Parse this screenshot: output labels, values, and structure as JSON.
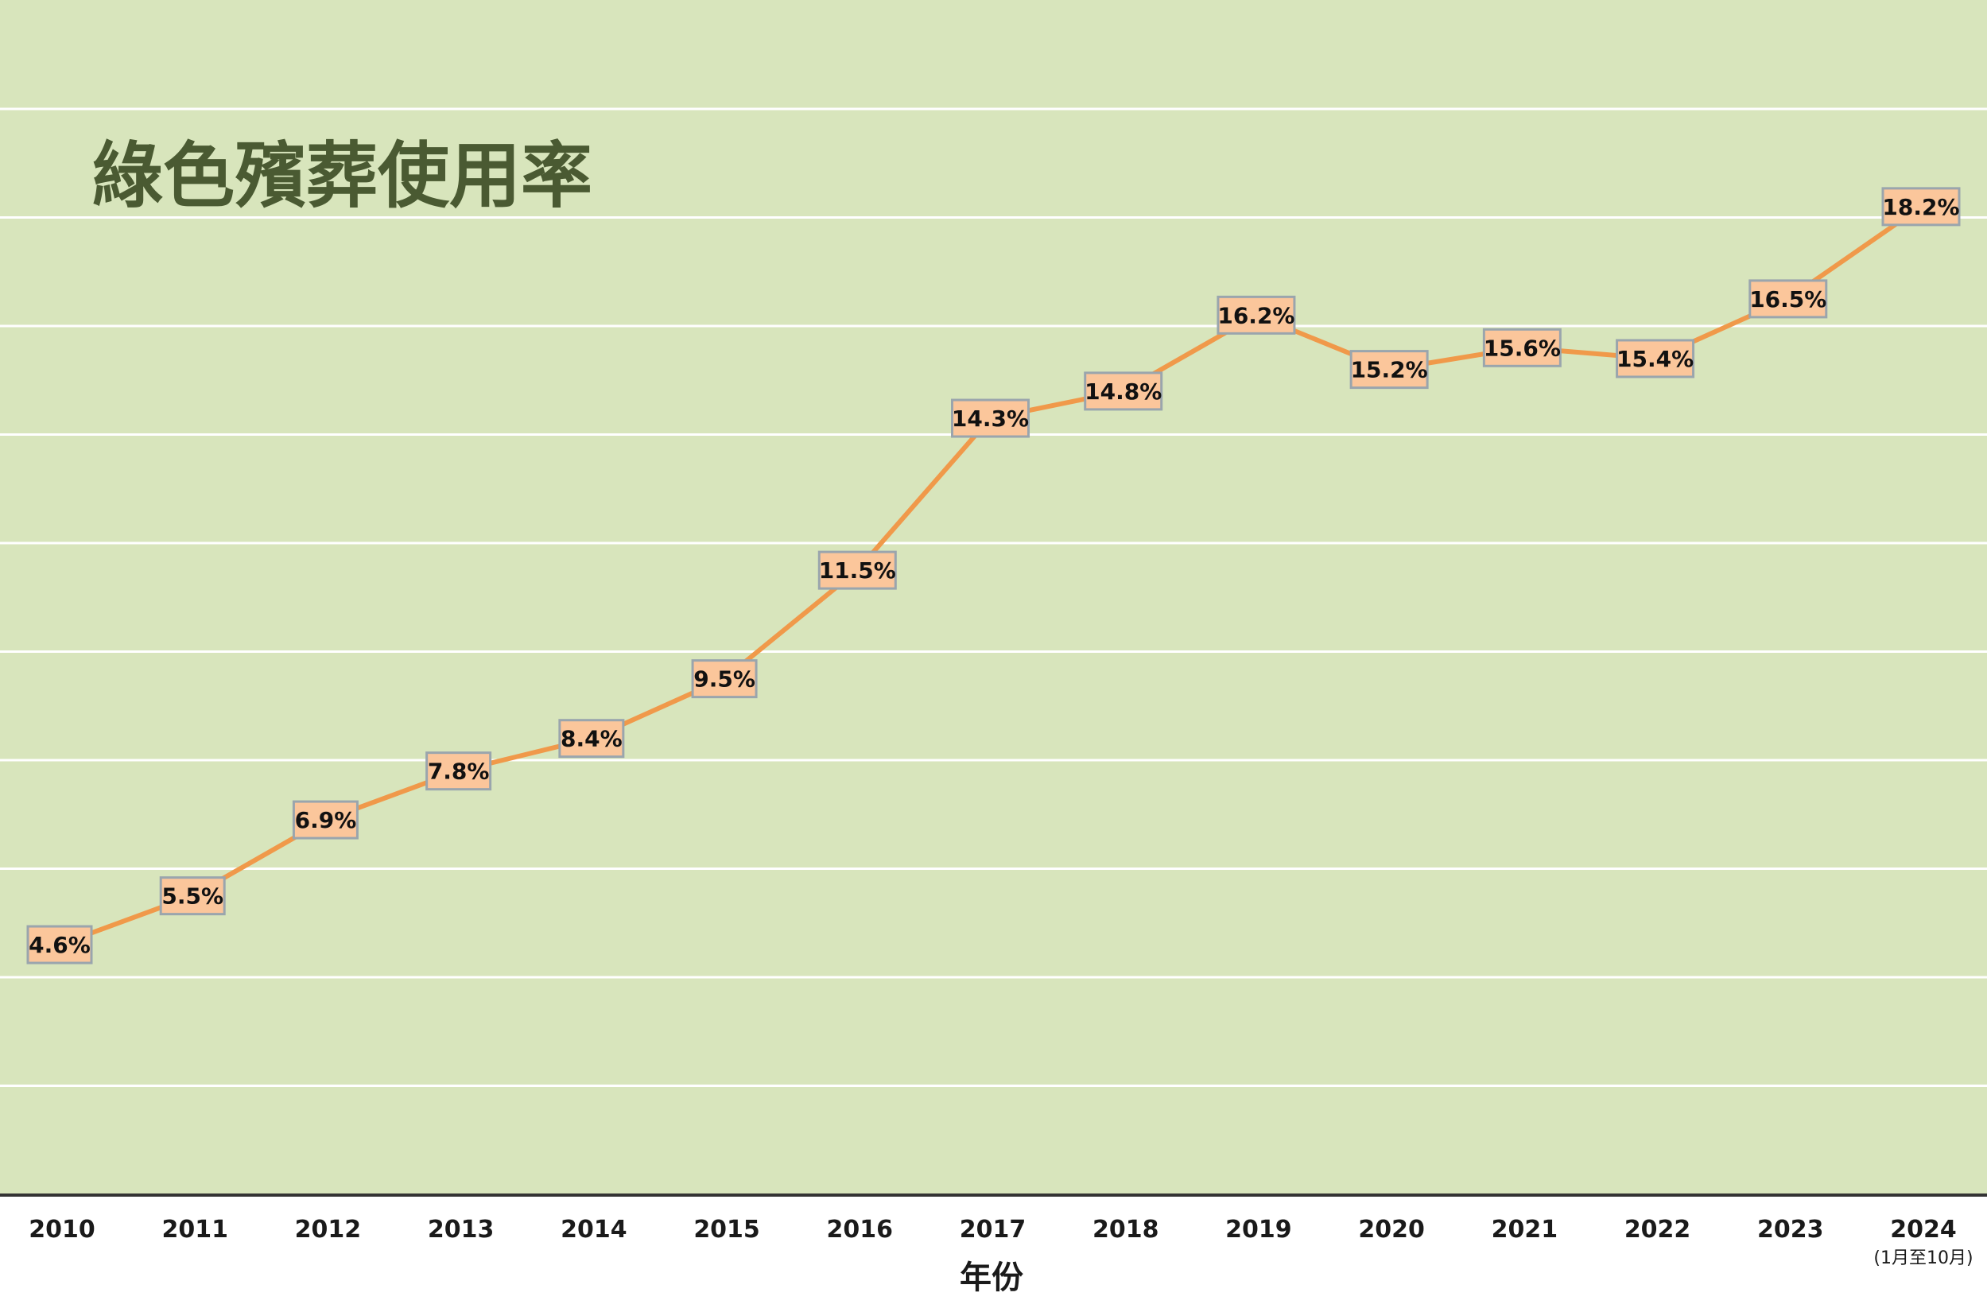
{
  "chart_data": {
    "type": "line",
    "title": "綠色殯葬使用率",
    "xlabel": "年份",
    "ylabel": "",
    "categories": [
      "2010",
      "2011",
      "2012",
      "2013",
      "2014",
      "2015",
      "2016",
      "2017",
      "2018",
      "2019",
      "2020",
      "2021",
      "2022",
      "2023",
      "2024"
    ],
    "category_notes": [
      "",
      "",
      "",
      "",
      "",
      "",
      "",
      "",
      "",
      "",
      "",
      "",
      "",
      "",
      "(1月至10月)"
    ],
    "series": [
      {
        "values": [
          4.6,
          5.5,
          6.9,
          7.8,
          8.4,
          9.5,
          11.5,
          14.3,
          14.8,
          16.2,
          15.2,
          15.6,
          15.4,
          16.5,
          18.2
        ],
        "labels": [
          "4.6%",
          "5.5%",
          "6.9%",
          "7.8%",
          "8.4%",
          "9.5%",
          "11.5%",
          "14.3%",
          "14.8%",
          "16.2%",
          "15.2%",
          "15.6%",
          "15.4%",
          "16.5%",
          "18.2%"
        ],
        "color": "#f0994a"
      }
    ],
    "ylim": [
      0,
      20
    ],
    "grid": true,
    "legend": "none",
    "colors": {
      "plot_background": "#d8e5bc",
      "gridline": "#ffffff",
      "line": "#f0994a",
      "label_fill": "#fbc69b",
      "label_border": "#9aa5ad",
      "title": "#4a5a32",
      "axis": "#333333"
    }
  }
}
